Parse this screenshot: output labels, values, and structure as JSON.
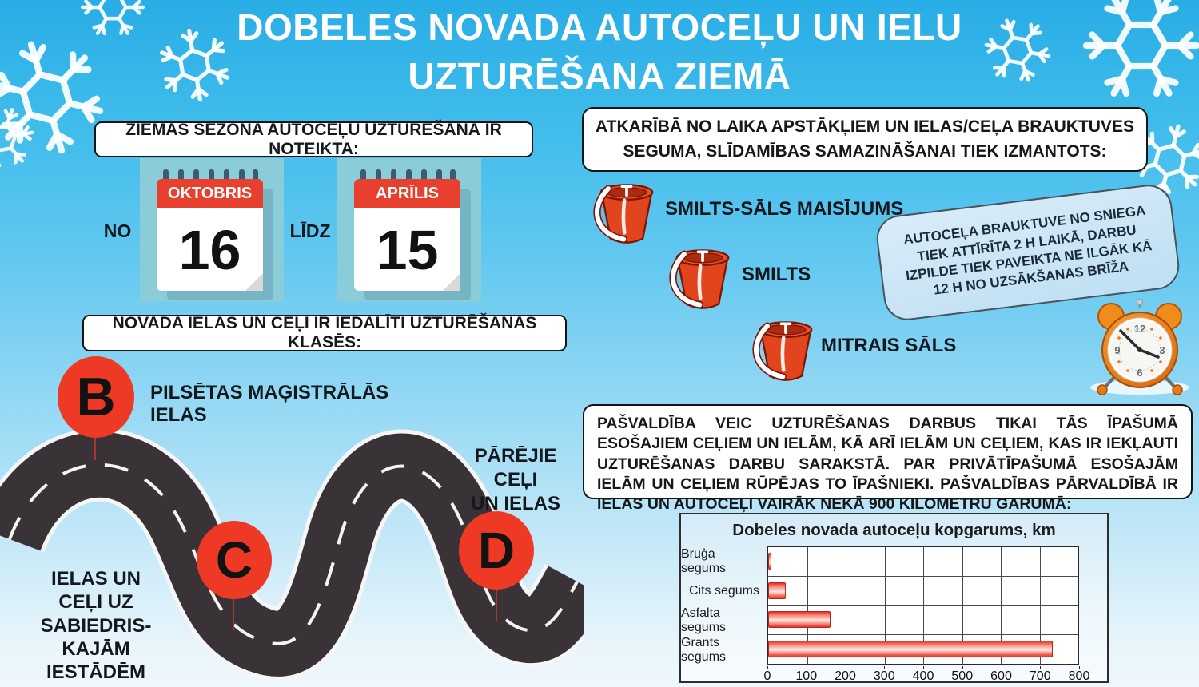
{
  "title": {
    "line1": "DOBELES NOVADA AUTOCEĻU UN IELU",
    "line2": "UZTURĒŠANA ZIEMĀ"
  },
  "season": {
    "heading": "ZIEMAS SEZONA AUTOCEĻU UZTURĒŠANĀ IR NOTEIKTA:",
    "from_label": "NO",
    "to_label": "LĪDZ",
    "start": {
      "month": "OKTOBRIS",
      "day": "16"
    },
    "end": {
      "month": "APRĪLIS",
      "day": "15"
    }
  },
  "classes": {
    "heading": "NOVADA IELAS UN CEĻI IR IEDALĪTI UZTURĒŠANAS KLASĒS:",
    "items": [
      {
        "letter": "B",
        "label": "PILSĒTAS MAĢISTRĀLĀS IELAS"
      },
      {
        "letter": "C",
        "label": "IELAS UN\nCEĻI UZ\nSABIEDRIS-\nKAJĀM\nIESTĀDĒM"
      },
      {
        "letter": "D",
        "label": "PĀRĒJIE CEĻI\nUN IELAS"
      }
    ]
  },
  "materials": {
    "heading": "ATKARĪBĀ NO LAIKA APSTĀKĻIEM UN IELAS/CEĻA BRAUKTUVES\nSEGUMA, SLĪDAMĪBAS SAMAZINĀŠANAI TIEK IZMANTOTS:",
    "items": [
      "SMILTS-SĀLS MAISĪJUMS",
      "SMILTS",
      "MITRAIS SĀLS"
    ]
  },
  "notice": {
    "text": "AUTOCEĻA BRAUKTUVE NO SNIEGA TIEK ATTĪRĪTA 2 H LAIKĀ, DARBU IZPILDE TIEK PAVEIKTA NE ILGĀK KĀ 12 H NO UZSĀKŠANAS BRĪŽA"
  },
  "ownership": {
    "text": "PAŠVALDĪBA VEIC UZTURĒŠANAS DARBUS TIKAI TĀS ĪPAŠUMĀ ESOŠAJIEM CEĻIEM UN IELĀM, KĀ ARĪ IELĀM UN CEĻIEM, KAS IR IEKĻAUTI UZTURĒŠANAS DARBU SARAKSTĀ. PAR PRIVĀTĪPAŠUMĀ ESOŠAJĀM IELĀM UN CEĻIEM RŪPĒJAS TO ĪPAŠNIEKI. PAŠVALDĪBAS PĀRVALDĪBĀ IR IELAS UN AUTOCEĻI VAIRĀK NEKĀ 900 KILOMETRU GARUMĀ:"
  },
  "chart_data": {
    "type": "bar",
    "orientation": "horizontal",
    "title": "Dobeles novada autoceļu kopgarums, km",
    "categories": [
      "Bruģa segums",
      "Cits segums",
      "Asfalta segums",
      "Grants segums"
    ],
    "values": [
      8,
      45,
      160,
      735
    ],
    "xlim": [
      0,
      800
    ],
    "xticks": [
      0,
      100,
      200,
      300,
      400,
      500,
      600,
      700,
      800
    ],
    "grid": true,
    "bar_color": "#ef4538",
    "legend": "none"
  },
  "colors": {
    "background_top": "#29ade6",
    "background_bottom": "#eef7fc",
    "accent_red": "#ee3a25",
    "calendar_red": "#e8402f",
    "bucket_red": "#e2451d",
    "road_dark": "#393236",
    "bubble_bg": "#c9e4f6",
    "title_text": "#ffffff"
  }
}
